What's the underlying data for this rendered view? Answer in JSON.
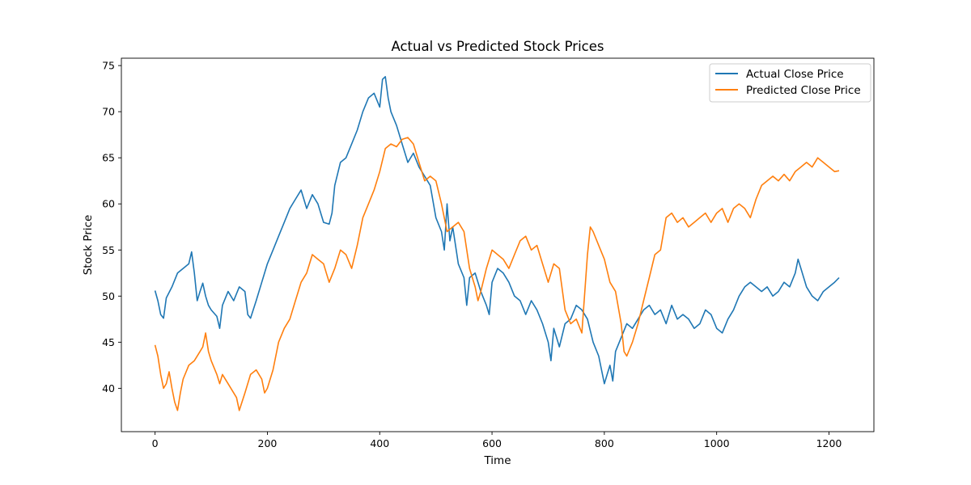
{
  "chart_data": {
    "type": "line",
    "title": "Actual vs Predicted Stock Prices",
    "xlabel": "Time",
    "ylabel": "Stock Price",
    "xlim": [
      -60,
      1280
    ],
    "ylim": [
      35.3,
      75.8
    ],
    "xticks": [
      0,
      200,
      400,
      600,
      800,
      1000,
      1200
    ],
    "yticks": [
      40,
      45,
      50,
      55,
      60,
      65,
      70,
      75
    ],
    "grid": false,
    "legend_position": "top-right",
    "colors": {
      "actual": "#1f77b4",
      "predicted": "#ff7f0e"
    },
    "series": [
      {
        "name": "Actual Close Price",
        "x": [
          0,
          5,
          10,
          15,
          20,
          30,
          40,
          50,
          60,
          65,
          70,
          75,
          80,
          85,
          90,
          95,
          100,
          110,
          115,
          120,
          130,
          140,
          150,
          160,
          165,
          170,
          180,
          190,
          200,
          210,
          220,
          230,
          240,
          250,
          260,
          270,
          280,
          290,
          300,
          310,
          315,
          320,
          330,
          340,
          350,
          360,
          370,
          380,
          390,
          400,
          405,
          410,
          415,
          420,
          430,
          440,
          450,
          460,
          470,
          480,
          490,
          500,
          510,
          515,
          520,
          525,
          530,
          540,
          550,
          555,
          560,
          570,
          580,
          590,
          595,
          600,
          610,
          620,
          630,
          640,
          650,
          660,
          670,
          680,
          690,
          700,
          705,
          710,
          720,
          730,
          740,
          750,
          760,
          770,
          780,
          790,
          795,
          800,
          805,
          810,
          815,
          820,
          830,
          840,
          850,
          860,
          870,
          880,
          890,
          900,
          910,
          920,
          930,
          940,
          950,
          960,
          970,
          980,
          990,
          1000,
          1010,
          1020,
          1030,
          1040,
          1050,
          1060,
          1070,
          1080,
          1090,
          1100,
          1110,
          1120,
          1130,
          1140,
          1145,
          1150,
          1160,
          1170,
          1180,
          1190,
          1200,
          1210,
          1218
        ],
        "values": [
          50.6,
          49.5,
          48.0,
          47.6,
          49.8,
          51.0,
          52.5,
          53.0,
          53.5,
          54.8,
          52.5,
          49.5,
          50.5,
          51.4,
          50.0,
          49.0,
          48.5,
          47.8,
          46.5,
          49.0,
          50.5,
          49.5,
          51.0,
          50.5,
          48.0,
          47.6,
          49.5,
          51.5,
          53.5,
          55.0,
          56.5,
          58.0,
          59.5,
          60.5,
          61.5,
          59.5,
          61.0,
          60.0,
          58.0,
          57.8,
          59.0,
          62.0,
          64.5,
          65.0,
          66.5,
          68.0,
          70.0,
          71.5,
          72.0,
          70.5,
          73.5,
          73.8,
          71.5,
          70.0,
          68.5,
          66.5,
          64.5,
          65.5,
          64.0,
          63.0,
          62.0,
          58.5,
          57.0,
          55.0,
          60.0,
          56.0,
          57.5,
          53.5,
          52.0,
          49.0,
          52.0,
          52.5,
          50.5,
          49.0,
          48.0,
          51.5,
          53.0,
          52.5,
          51.5,
          50.0,
          49.5,
          48.0,
          49.5,
          48.5,
          47.0,
          45.0,
          43.0,
          46.5,
          44.5,
          47.0,
          47.5,
          49.0,
          48.5,
          47.5,
          45.0,
          43.5,
          42.0,
          40.5,
          41.5,
          42.5,
          40.8,
          44.0,
          45.5,
          47.0,
          46.5,
          47.5,
          48.5,
          49.0,
          48.0,
          48.5,
          47.0,
          49.0,
          47.5,
          48.0,
          47.5,
          46.5,
          47.0,
          48.5,
          48.0,
          46.5,
          46.0,
          47.5,
          48.5,
          50.0,
          51.0,
          51.5,
          51.0,
          50.5,
          51.0,
          50.0,
          50.5,
          51.5,
          51.0,
          52.5,
          54.0,
          53.0,
          51.0,
          50.0,
          49.5,
          50.5,
          51.0,
          51.5,
          52.0
        ],
        "color": "#1f77b4"
      },
      {
        "name": "Predicted Close Price",
        "x": [
          0,
          5,
          10,
          15,
          20,
          25,
          30,
          35,
          40,
          45,
          50,
          60,
          70,
          80,
          85,
          90,
          95,
          100,
          110,
          115,
          120,
          130,
          140,
          145,
          150,
          160,
          170,
          180,
          190,
          195,
          200,
          210,
          220,
          230,
          240,
          250,
          260,
          270,
          280,
          290,
          300,
          305,
          310,
          320,
          330,
          340,
          350,
          360,
          370,
          380,
          390,
          400,
          410,
          420,
          430,
          440,
          450,
          460,
          470,
          480,
          490,
          500,
          510,
          520,
          530,
          540,
          550,
          560,
          570,
          575,
          580,
          590,
          600,
          610,
          620,
          630,
          640,
          650,
          660,
          670,
          680,
          690,
          700,
          710,
          720,
          730,
          740,
          750,
          760,
          770,
          775,
          780,
          790,
          800,
          810,
          820,
          830,
          835,
          840,
          850,
          860,
          870,
          880,
          890,
          900,
          910,
          920,
          930,
          940,
          950,
          960,
          970,
          980,
          990,
          1000,
          1010,
          1020,
          1030,
          1040,
          1050,
          1060,
          1070,
          1080,
          1090,
          1100,
          1110,
          1120,
          1130,
          1140,
          1150,
          1160,
          1170,
          1180,
          1190,
          1200,
          1210,
          1218
        ],
        "values": [
          44.7,
          43.5,
          41.5,
          40.0,
          40.5,
          41.8,
          40.0,
          38.5,
          37.6,
          39.5,
          41.0,
          42.5,
          43.0,
          44.0,
          44.5,
          46.0,
          44.0,
          43.0,
          41.5,
          40.5,
          41.5,
          40.5,
          39.5,
          39.0,
          37.6,
          39.5,
          41.5,
          42.0,
          41.0,
          39.5,
          40.0,
          42.0,
          45.0,
          46.5,
          47.5,
          49.5,
          51.5,
          52.5,
          54.5,
          54.0,
          53.5,
          52.5,
          51.5,
          53.0,
          55.0,
          54.5,
          53.0,
          55.5,
          58.5,
          60.0,
          61.5,
          63.5,
          66.0,
          66.5,
          66.2,
          67.0,
          67.2,
          66.5,
          64.5,
          62.5,
          63.0,
          62.5,
          60.0,
          57.0,
          57.5,
          58.0,
          57.0,
          53.0,
          51.0,
          49.5,
          50.5,
          53.0,
          55.0,
          54.5,
          54.0,
          53.0,
          54.5,
          56.0,
          56.5,
          55.0,
          55.5,
          53.5,
          51.5,
          53.5,
          53.0,
          48.5,
          47.0,
          47.5,
          46.0,
          54.5,
          57.5,
          57.0,
          55.5,
          54.0,
          51.5,
          50.5,
          47.0,
          44.0,
          43.5,
          45.0,
          47.0,
          49.5,
          52.0,
          54.5,
          55.0,
          58.5,
          59.0,
          58.0,
          58.5,
          57.5,
          58.0,
          58.5,
          59.0,
          58.0,
          59.0,
          59.5,
          58.0,
          59.5,
          60.0,
          59.5,
          58.5,
          60.5,
          62.0,
          62.5,
          63.0,
          62.5,
          63.2,
          62.5,
          63.5,
          64.0,
          64.5,
          64.0,
          65.0,
          64.5,
          64.0,
          63.5,
          63.6
        ],
        "color": "#ff7f0e"
      }
    ]
  }
}
